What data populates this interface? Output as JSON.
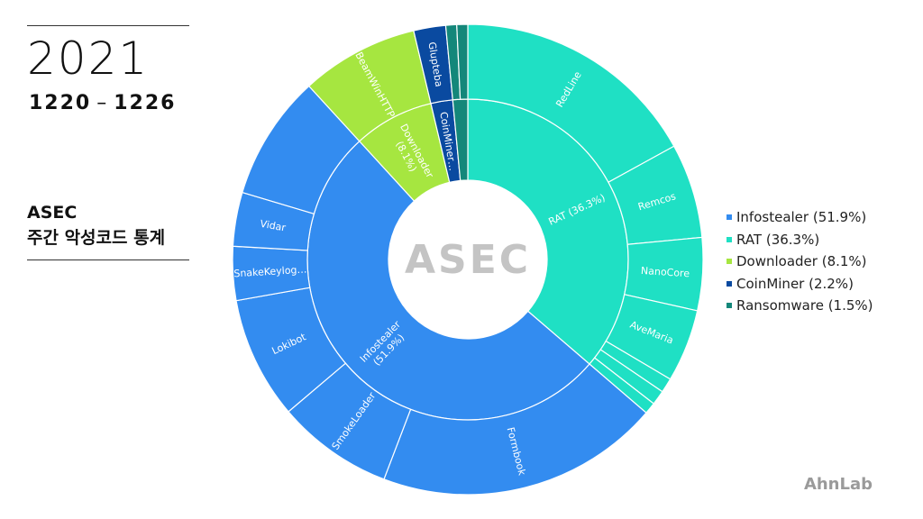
{
  "header": {
    "year": "2021",
    "date_from": "1220",
    "date_sep": "–",
    "date_to": "1226",
    "subtitle_line1": "ASEC",
    "subtitle_line2": "주간 악성코드 통계"
  },
  "center_logo": "ASEC",
  "brand": "AhnLab",
  "colors": {
    "Infostealer": "#338cf0",
    "RAT": "#1fe0c4",
    "Downloader": "#a6e640",
    "CoinMiner": "#0a4aa0",
    "Ransomware": "#14877a"
  },
  "chart_data": {
    "type": "sunburst",
    "title": "",
    "legend_position": "right",
    "legend": [
      {
        "label": "Infostealer (51.9%)",
        "category": "Infostealer"
      },
      {
        "label": "RAT (36.3%)",
        "category": "RAT"
      },
      {
        "label": "Downloader (8.1%)",
        "category": "Downloader"
      },
      {
        "label": "CoinMiner (2.2%)",
        "category": "CoinMiner"
      },
      {
        "label": "Ransomware (1.5%)",
        "category": "Ransomware"
      }
    ],
    "inner": [
      {
        "name": "RAT",
        "label": "RAT (36.3%)",
        "value": 36.3
      },
      {
        "name": "Infostealer",
        "label": "Infostealer\n(51.9%)",
        "value": 51.9
      },
      {
        "name": "Downloader",
        "label": "Downloader\n(8.1%)",
        "value": 8.1
      },
      {
        "name": "CoinMiner",
        "label": "CoinMiner…",
        "value": 2.2
      },
      {
        "name": "Ransomware",
        "label": "",
        "value": 1.5
      }
    ],
    "outer": [
      {
        "parent": "RAT",
        "label": "RedLine",
        "value": 17.0
      },
      {
        "parent": "RAT",
        "label": "Remcos",
        "value": 6.5
      },
      {
        "parent": "RAT",
        "label": "NanoCore",
        "value": 5.0
      },
      {
        "parent": "RAT",
        "label": "AveMaria",
        "value": 5.0
      },
      {
        "parent": "RAT",
        "label": "",
        "value": 1.0
      },
      {
        "parent": "RAT",
        "label": "",
        "value": 1.0
      },
      {
        "parent": "RAT",
        "label": "",
        "value": 0.8
      },
      {
        "parent": "Infostealer",
        "label": "Formbook",
        "value": 19.5
      },
      {
        "parent": "Infostealer",
        "label": "SmokeLoader",
        "value": 8.0
      },
      {
        "parent": "Infostealer",
        "label": "Lokibot",
        "value": 8.4
      },
      {
        "parent": "Infostealer",
        "label": "SnakeKeylog…",
        "value": 3.7
      },
      {
        "parent": "Infostealer",
        "label": "Vidar",
        "value": 3.7
      },
      {
        "parent": "Infostealer",
        "label": "",
        "value": 8.6
      },
      {
        "parent": "Downloader",
        "label": "BeamWinHTTP",
        "value": 8.1
      },
      {
        "parent": "CoinMiner",
        "label": "Glupteba",
        "value": 2.2
      },
      {
        "parent": "Ransomware",
        "label": "",
        "value": 0.75
      },
      {
        "parent": "Ransomware",
        "label": "",
        "value": 0.75
      }
    ]
  }
}
